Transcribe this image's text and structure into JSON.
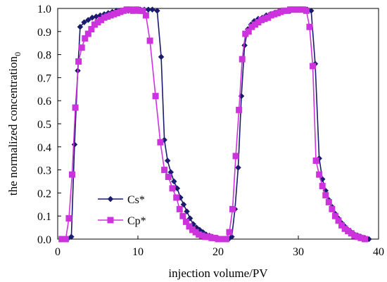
{
  "chart_data": {
    "type": "line",
    "title": "",
    "xlabel": "injection volume/PV",
    "ylabel": "the normalized concentration",
    "ylabel_subscript": "0",
    "xlim": [
      0,
      40
    ],
    "ylim": [
      0,
      1
    ],
    "xticks": [
      0,
      10,
      20,
      30,
      40
    ],
    "yticks": [
      0.0,
      0.1,
      0.2,
      0.3,
      0.4,
      0.5,
      0.6,
      0.7,
      0.8,
      0.9,
      1.0
    ],
    "ytick_labels": [
      "0.0",
      "0.1",
      "0.2",
      "0.3",
      "0.4",
      "0.5",
      "0.6",
      "0.7",
      "0.8",
      "0.9",
      "1.0"
    ],
    "grid": false,
    "legend": "lower-left",
    "series": [
      {
        "name": "Cs*",
        "color": "#1a1a6e",
        "marker": "diamond",
        "points": [
          [
            0.5,
            0
          ],
          [
            1.2,
            0
          ],
          [
            1.7,
            0.01
          ],
          [
            2.1,
            0.41
          ],
          [
            2.5,
            0.73
          ],
          [
            2.8,
            0.92
          ],
          [
            3.3,
            0.94
          ],
          [
            3.8,
            0.95
          ],
          [
            4.3,
            0.96
          ],
          [
            4.8,
            0.965
          ],
          [
            5.3,
            0.97
          ],
          [
            5.8,
            0.975
          ],
          [
            6.3,
            0.98
          ],
          [
            6.8,
            0.985
          ],
          [
            7.3,
            0.99
          ],
          [
            7.8,
            0.99
          ],
          [
            8.3,
            0.99
          ],
          [
            8.8,
            0.99
          ],
          [
            9.3,
            0.995
          ],
          [
            9.8,
            0.995
          ],
          [
            10.3,
            0.995
          ],
          [
            10.8,
            0.995
          ],
          [
            11.3,
            0.995
          ],
          [
            11.8,
            0.995
          ],
          [
            12.4,
            0.99
          ],
          [
            12.9,
            0.79
          ],
          [
            13.3,
            0.43
          ],
          [
            13.7,
            0.34
          ],
          [
            14.1,
            0.29
          ],
          [
            14.5,
            0.25
          ],
          [
            14.9,
            0.22
          ],
          [
            15.3,
            0.18
          ],
          [
            15.7,
            0.15
          ],
          [
            16.1,
            0.12
          ],
          [
            16.5,
            0.09
          ],
          [
            16.9,
            0.065
          ],
          [
            17.3,
            0.05
          ],
          [
            17.7,
            0.04
          ],
          [
            18.1,
            0.03
          ],
          [
            18.5,
            0.02
          ],
          [
            18.9,
            0.015
          ],
          [
            19.3,
            0.01
          ],
          [
            19.7,
            0.005
          ],
          [
            20.2,
            0
          ],
          [
            20.7,
            0
          ],
          [
            21.3,
            0
          ],
          [
            21.7,
            0.01
          ],
          [
            22.1,
            0.13
          ],
          [
            22.5,
            0.31
          ],
          [
            22.9,
            0.62
          ],
          [
            23.3,
            0.84
          ],
          [
            23.7,
            0.91
          ],
          [
            24.1,
            0.93
          ],
          [
            24.5,
            0.945
          ],
          [
            25.0,
            0.955
          ],
          [
            25.5,
            0.96
          ],
          [
            26.0,
            0.97
          ],
          [
            26.5,
            0.975
          ],
          [
            27.0,
            0.98
          ],
          [
            27.5,
            0.985
          ],
          [
            28.0,
            0.99
          ],
          [
            28.5,
            0.99
          ],
          [
            29.0,
            0.99
          ],
          [
            29.5,
            0.995
          ],
          [
            30.0,
            0.995
          ],
          [
            30.5,
            0.995
          ],
          [
            31.1,
            0.995
          ],
          [
            31.6,
            0.99
          ],
          [
            32.1,
            0.76
          ],
          [
            32.6,
            0.35
          ],
          [
            33.0,
            0.26
          ],
          [
            33.4,
            0.21
          ],
          [
            33.8,
            0.17
          ],
          [
            34.2,
            0.14
          ],
          [
            34.6,
            0.11
          ],
          [
            35.0,
            0.09
          ],
          [
            35.4,
            0.07
          ],
          [
            35.8,
            0.055
          ],
          [
            36.2,
            0.04
          ],
          [
            36.6,
            0.03
          ],
          [
            37.0,
            0.02
          ],
          [
            37.4,
            0.015
          ],
          [
            37.8,
            0.01
          ],
          [
            38.3,
            0.005
          ],
          [
            38.8,
            0
          ]
        ]
      },
      {
        "name": "Cp*",
        "color": "#cc33dd",
        "marker": "square",
        "points": [
          [
            0.5,
            0
          ],
          [
            1.0,
            0
          ],
          [
            1.4,
            0.09
          ],
          [
            1.8,
            0.28
          ],
          [
            2.2,
            0.57
          ],
          [
            2.6,
            0.77
          ],
          [
            3.0,
            0.83
          ],
          [
            3.4,
            0.87
          ],
          [
            3.8,
            0.89
          ],
          [
            4.2,
            0.91
          ],
          [
            4.6,
            0.93
          ],
          [
            5.0,
            0.94
          ],
          [
            5.4,
            0.95
          ],
          [
            5.8,
            0.96
          ],
          [
            6.2,
            0.965
          ],
          [
            6.6,
            0.97
          ],
          [
            7.0,
            0.975
          ],
          [
            7.4,
            0.98
          ],
          [
            7.8,
            0.985
          ],
          [
            8.2,
            0.99
          ],
          [
            8.6,
            0.995
          ],
          [
            9.0,
            0.995
          ],
          [
            9.4,
            0.99
          ],
          [
            9.8,
            0.995
          ],
          [
            10.2,
            0.99
          ],
          [
            10.6,
            0.99
          ],
          [
            11.0,
            0.97
          ],
          [
            11.5,
            0.86
          ],
          [
            12.2,
            0.62
          ],
          [
            12.8,
            0.42
          ],
          [
            13.3,
            0.3
          ],
          [
            13.8,
            0.27
          ],
          [
            14.3,
            0.22
          ],
          [
            14.8,
            0.18
          ],
          [
            15.2,
            0.13
          ],
          [
            15.6,
            0.1
          ],
          [
            16.0,
            0.075
          ],
          [
            16.4,
            0.055
          ],
          [
            16.8,
            0.04
          ],
          [
            17.2,
            0.03
          ],
          [
            17.6,
            0.02
          ],
          [
            18.0,
            0.015
          ],
          [
            18.4,
            0.01
          ],
          [
            18.8,
            0.01
          ],
          [
            19.2,
            0.005
          ],
          [
            19.6,
            0.005
          ],
          [
            20.0,
            0
          ],
          [
            20.5,
            0
          ],
          [
            21.0,
            0
          ],
          [
            21.4,
            0.03
          ],
          [
            21.8,
            0.13
          ],
          [
            22.2,
            0.36
          ],
          [
            22.6,
            0.56
          ],
          [
            23.0,
            0.78
          ],
          [
            23.4,
            0.89
          ],
          [
            23.8,
            0.9
          ],
          [
            24.2,
            0.92
          ],
          [
            24.6,
            0.93
          ],
          [
            25.0,
            0.94
          ],
          [
            25.4,
            0.95
          ],
          [
            25.8,
            0.955
          ],
          [
            26.2,
            0.96
          ],
          [
            26.6,
            0.97
          ],
          [
            27.0,
            0.975
          ],
          [
            27.4,
            0.98
          ],
          [
            27.8,
            0.985
          ],
          [
            28.2,
            0.99
          ],
          [
            28.6,
            0.99
          ],
          [
            29.0,
            0.995
          ],
          [
            29.4,
            0.995
          ],
          [
            29.8,
            0.995
          ],
          [
            30.2,
            0.995
          ],
          [
            30.6,
            0.995
          ],
          [
            31.0,
            0.99
          ],
          [
            31.4,
            0.92
          ],
          [
            31.8,
            0.75
          ],
          [
            32.2,
            0.34
          ],
          [
            32.6,
            0.28
          ],
          [
            33.0,
            0.23
          ],
          [
            33.4,
            0.19
          ],
          [
            33.8,
            0.16
          ],
          [
            34.2,
            0.13
          ],
          [
            34.6,
            0.1
          ],
          [
            35.0,
            0.08
          ],
          [
            35.4,
            0.06
          ],
          [
            35.8,
            0.045
          ],
          [
            36.2,
            0.035
          ],
          [
            36.6,
            0.025
          ],
          [
            37.0,
            0.015
          ],
          [
            37.4,
            0.01
          ],
          [
            37.8,
            0.005
          ],
          [
            38.3,
            0
          ]
        ]
      }
    ]
  }
}
